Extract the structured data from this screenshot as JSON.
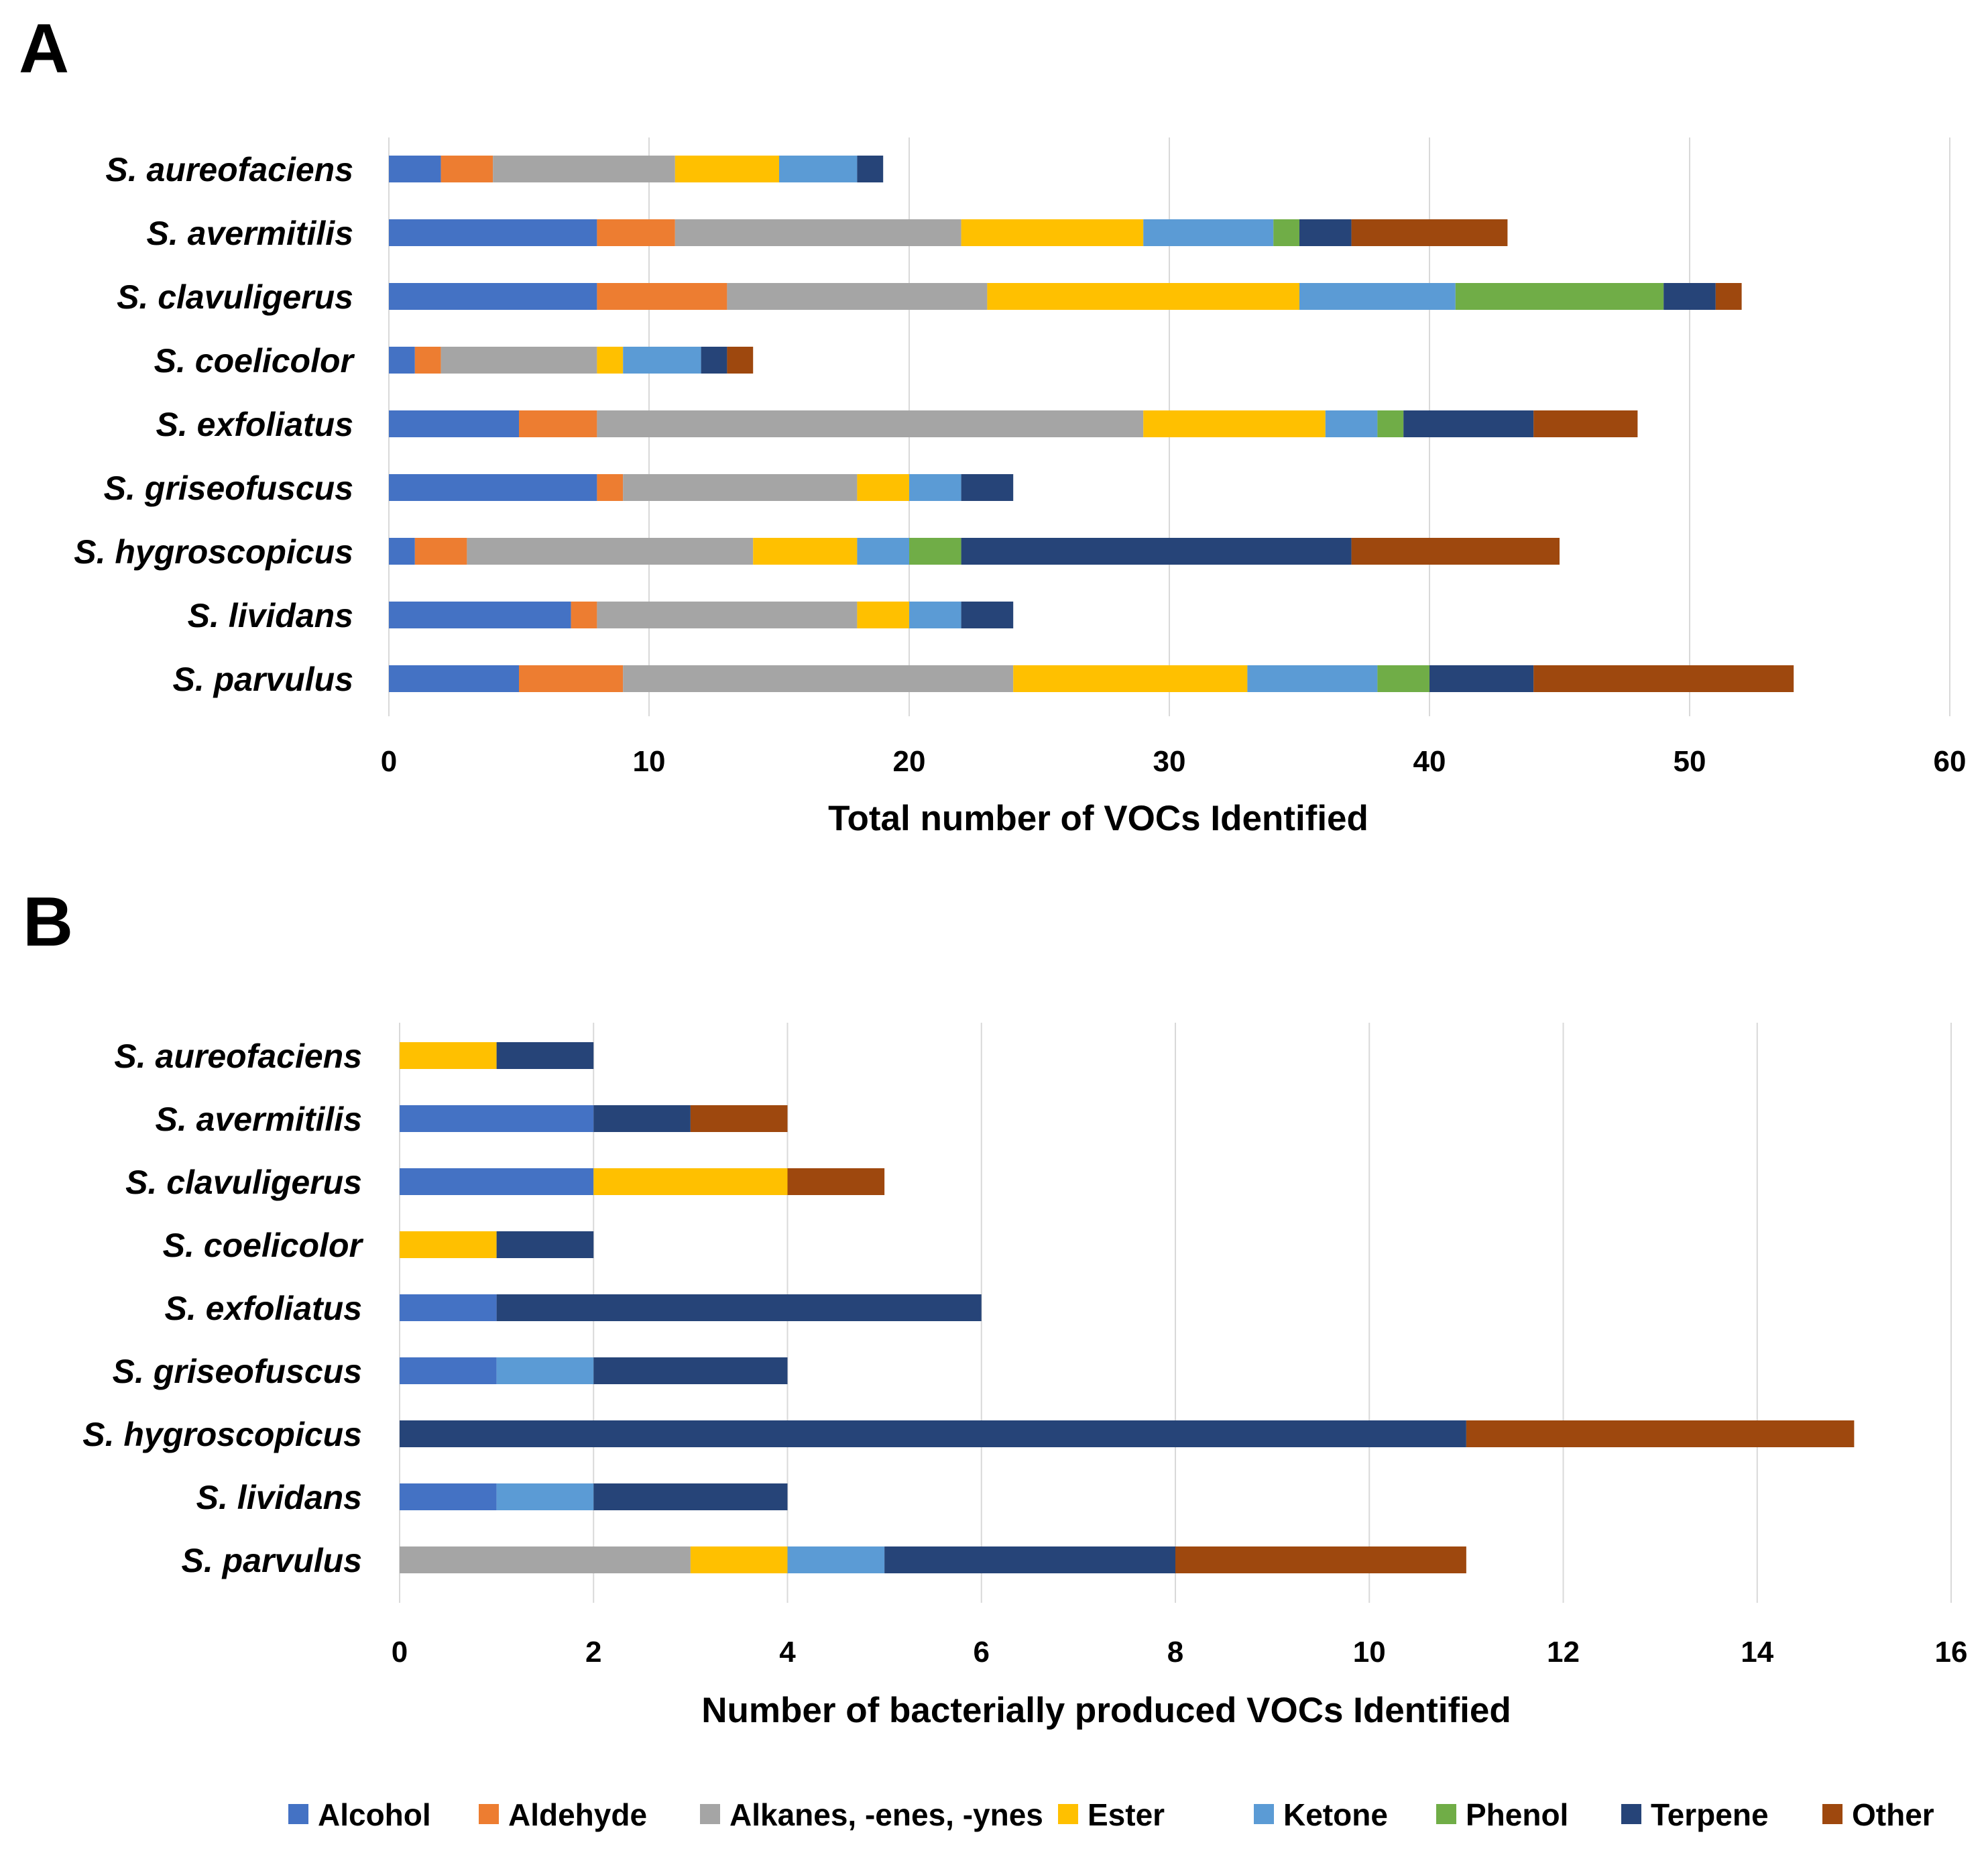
{
  "legend": [
    {
      "name": "Alcohol",
      "color": "#4472c4"
    },
    {
      "name": "Aldehyde",
      "color": "#ed7d31"
    },
    {
      "name": "Alkanes, -enes, -ynes",
      "color": "#a5a5a5"
    },
    {
      "name": "Ester",
      "color": "#ffc000"
    },
    {
      "name": "Ketone",
      "color": "#5b9bd5"
    },
    {
      "name": "Phenol",
      "color": "#70ad47"
    },
    {
      "name": "Terpene",
      "color": "#264478"
    },
    {
      "name": "Other",
      "color": "#9e480e"
    }
  ],
  "chart_data": [
    {
      "panel": "A",
      "type": "bar",
      "orientation": "horizontal",
      "stacked": true,
      "title": "",
      "xlabel": "Total number of VOCs Identified",
      "ylabel": "",
      "xlim": [
        0,
        60
      ],
      "xticks": [
        0,
        10,
        20,
        30,
        40,
        50,
        60
      ],
      "grid": true,
      "legend_position": "bottom",
      "categories": [
        "S. aureofaciens",
        "S. avermitilis",
        "S. clavuligerus",
        "S. coelicolor",
        "S. exfoliatus",
        "S. griseofuscus",
        "S. hygroscopicus",
        "S. lividans",
        "S. parvulus"
      ],
      "series": [
        {
          "name": "Alcohol",
          "values": [
            2,
            8,
            8,
            1,
            5,
            8,
            1,
            7,
            5
          ]
        },
        {
          "name": "Aldehyde",
          "values": [
            2,
            3,
            5,
            1,
            3,
            1,
            2,
            1,
            4
          ]
        },
        {
          "name": "Alkanes, -enes, -ynes",
          "values": [
            7,
            11,
            10,
            6,
            21,
            9,
            11,
            10,
            15
          ]
        },
        {
          "name": "Ester",
          "values": [
            4,
            7,
            12,
            1,
            7,
            2,
            4,
            2,
            9
          ]
        },
        {
          "name": "Ketone",
          "values": [
            3,
            5,
            6,
            3,
            2,
            2,
            2,
            2,
            5
          ]
        },
        {
          "name": "Phenol",
          "values": [
            0,
            1,
            8,
            0,
            1,
            0,
            2,
            0,
            2
          ]
        },
        {
          "name": "Terpene",
          "values": [
            1,
            2,
            2,
            1,
            5,
            2,
            15,
            2,
            4
          ]
        },
        {
          "name": "Other",
          "values": [
            0,
            6,
            1,
            1,
            4,
            0,
            8,
            0,
            10
          ]
        }
      ]
    },
    {
      "panel": "B",
      "type": "bar",
      "orientation": "horizontal",
      "stacked": true,
      "title": "",
      "xlabel": "Number of bacterially produced VOCs Identified",
      "ylabel": "",
      "xlim": [
        0,
        16
      ],
      "xticks": [
        0,
        2,
        4,
        6,
        8,
        10,
        12,
        14,
        16
      ],
      "grid": true,
      "legend_position": "bottom",
      "categories": [
        "S. aureofaciens",
        "S. avermitilis",
        "S. clavuligerus",
        "S. coelicolor",
        "S. exfoliatus",
        "S. griseofuscus",
        "S. hygroscopicus",
        "S. lividans",
        "S. parvulus"
      ],
      "series": [
        {
          "name": "Alcohol",
          "values": [
            0,
            2,
            2,
            0,
            1,
            1,
            0,
            1,
            0
          ]
        },
        {
          "name": "Aldehyde",
          "values": [
            0,
            0,
            0,
            0,
            0,
            0,
            0,
            0,
            0
          ]
        },
        {
          "name": "Alkanes, -enes, -ynes",
          "values": [
            0,
            0,
            0,
            0,
            0,
            0,
            0,
            0,
            3
          ]
        },
        {
          "name": "Ester",
          "values": [
            1,
            0,
            2,
            1,
            0,
            0,
            0,
            0,
            1
          ]
        },
        {
          "name": "Ketone",
          "values": [
            0,
            0,
            0,
            0,
            0,
            1,
            0,
            1,
            1
          ]
        },
        {
          "name": "Phenol",
          "values": [
            0,
            0,
            0,
            0,
            0,
            0,
            0,
            0,
            0
          ]
        },
        {
          "name": "Terpene",
          "values": [
            1,
            1,
            0,
            1,
            5,
            2,
            11,
            2,
            3
          ]
        },
        {
          "name": "Other",
          "values": [
            0,
            1,
            1,
            0,
            0,
            0,
            4,
            0,
            3
          ]
        }
      ]
    }
  ]
}
